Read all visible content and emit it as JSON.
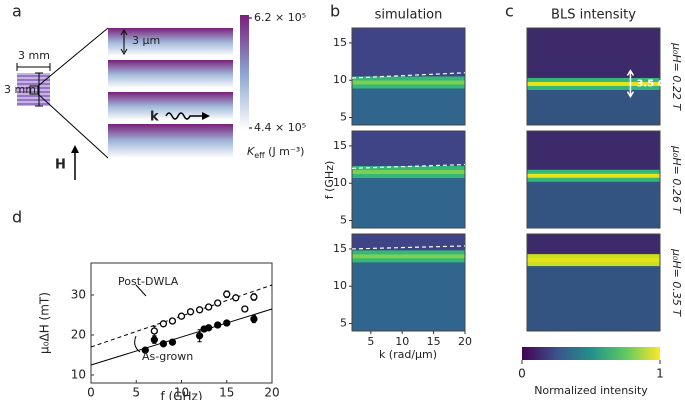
{
  "panel_a": {
    "label": "a",
    "width_label": "3 mm",
    "height_label": "3 mm",
    "spacing_label": "3 μm",
    "k_label": "k",
    "field_label": "H",
    "colorbar": {
      "ticks": [
        {
          "value": 620000,
          "label": "6.2 × 10⁵"
        },
        {
          "value": 440000,
          "label": "4.4 × 10⁵"
        }
      ],
      "label_symbol": "K",
      "label_subscript": "eff",
      "label_unit": " (J m⁻³)"
    }
  },
  "chart_data": [
    {
      "type": "heatmap",
      "panel_labels": [
        "b",
        "c"
      ],
      "titles": [
        "simulation",
        "BLS intensity"
      ],
      "xlabel": "k (rad/μm)",
      "ylabel": "f (GHz)",
      "xlim": [
        2,
        20
      ],
      "xticks": [
        5,
        10,
        15,
        20
      ],
      "ylim": [
        4,
        17
      ],
      "yticks": [
        5,
        10,
        15
      ],
      "rows": [
        {
          "field_label": "μ₀H= 0.22 T",
          "dispersion": {
            "x": [
              2,
              20
            ],
            "y": [
              10.3,
              11.0
            ]
          },
          "band_center": [
            9.7,
            9.5
          ]
        },
        {
          "field_label": "μ₀H= 0.26 T",
          "dispersion": {
            "x": [
              2,
              20
            ],
            "y": [
              12.0,
              12.5
            ]
          },
          "band_center": [
            11.5,
            11.0
          ]
        },
        {
          "field_label": "μ₀H= 0.35 T",
          "dispersion": {
            "x": [
              2,
              20
            ],
            "y": [
              15.0,
              15.4
            ]
          },
          "band_center": [
            14.0,
            13.5
          ]
        }
      ],
      "annotation": {
        "text": "3.5 GHz",
        "x": 16,
        "y": [
          7.8,
          11.3
        ]
      },
      "colorbar": {
        "label": "Normalized intensity",
        "lim": [
          0,
          1
        ],
        "ticks": [
          0,
          1
        ]
      }
    },
    {
      "type": "scatter",
      "panel_label": "d",
      "xlabel": "f (GHz)",
      "ylabel": "μ₀ΔH (mT)",
      "xlim": [
        0,
        20
      ],
      "xticks": [
        0,
        5,
        10,
        15,
        20
      ],
      "ylim": [
        8,
        38
      ],
      "yticks": [
        10,
        20,
        30
      ],
      "series": [
        {
          "name": "Post-DWLA",
          "color": "#000000",
          "marker": "open",
          "x": [
            7,
            8,
            9,
            10,
            11,
            12,
            13,
            14,
            15,
            16,
            17,
            18
          ],
          "values": [
            21,
            22.8,
            23.5,
            24.7,
            25.8,
            26.3,
            27,
            28,
            30.2,
            29.3,
            26.5,
            29.5
          ],
          "errors": [
            1.2,
            0.6,
            0.6,
            0.6,
            0.6,
            0.6,
            0.6,
            0.6,
            0.8,
            0.6,
            0.6,
            0.8
          ],
          "fit": {
            "x": [
              0,
              20
            ],
            "y": [
              17,
              32.5
            ],
            "dash": true
          }
        },
        {
          "name": "As-grown",
          "color": "#000000",
          "marker": "filled",
          "x": [
            6,
            7,
            8,
            9,
            12,
            12.5,
            13,
            14,
            15,
            18
          ],
          "values": [
            16.2,
            18.8,
            17.8,
            18.2,
            19.8,
            21.5,
            21.8,
            22.5,
            23,
            24
          ],
          "errors": [
            0.5,
            0.9,
            0.5,
            0.5,
            1.5,
            0.6,
            0.5,
            0.5,
            0.5,
            0.9
          ],
          "fit": {
            "x": [
              0,
              20
            ],
            "y": [
              12.5,
              26.5
            ],
            "dash": false
          }
        }
      ]
    }
  ]
}
